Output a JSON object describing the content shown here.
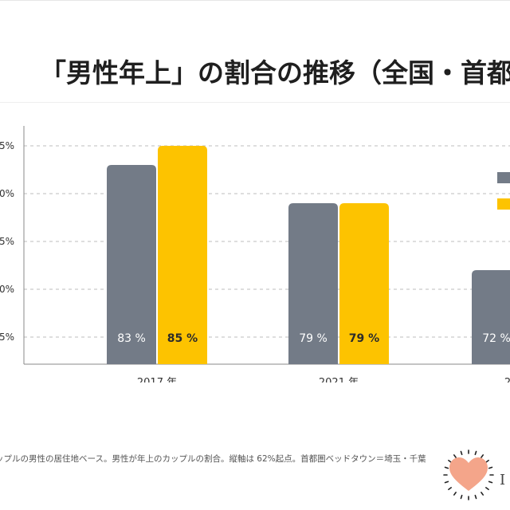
{
  "title": "「男性年上」の割合の推移（全国・首都",
  "note": "ップルの男性の居住地ベース。男性が年上のカップルの割合。縦軸は 62%起点。首都圏ベッドタウン＝埼玉・千葉",
  "logo": {
    "letter": "I",
    "icon": "heart-icon"
  },
  "colors": {
    "gray": "#737b87",
    "yellow": "#fdc300",
    "grid": "#bdbdbd",
    "axis": "#8a8a8a",
    "text": "#333333"
  },
  "chart_data": {
    "type": "bar",
    "categories": [
      "2017 年",
      "2021 年",
      "2"
    ],
    "series": [
      {
        "values": [
          83,
          79,
          72
        ],
        "labels": [
          "83 %",
          "79 %",
          "72 %"
        ],
        "color": "#737b87"
      },
      {
        "values": [
          85,
          79,
          null
        ],
        "labels": [
          "85 %",
          "79 %",
          ""
        ],
        "color": "#fdc300"
      }
    ],
    "yticks": [
      "5%",
      "0%",
      "5%",
      "0%",
      "5%"
    ],
    "ytick_values": [
      85,
      80,
      75,
      70,
      65
    ],
    "ylim": [
      62,
      85
    ],
    "legend": "right",
    "grid": true
  }
}
